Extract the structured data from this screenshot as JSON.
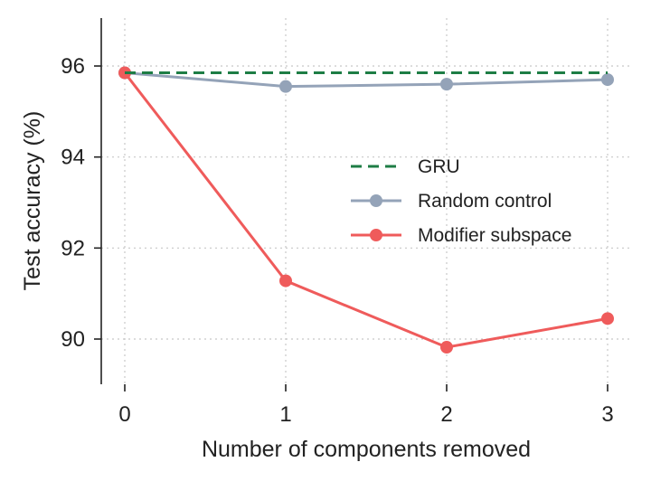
{
  "chart_data": {
    "type": "line",
    "xlabel": "Number of components removed",
    "ylabel": "Test accuracy (%)",
    "x": [
      0,
      1,
      2,
      3
    ],
    "xticks": [
      "0",
      "1",
      "2",
      "3"
    ],
    "yticks": [
      "90",
      "92",
      "94",
      "96"
    ],
    "xlim": [
      0,
      3
    ],
    "ylim": [
      88.8,
      96.9
    ],
    "grid": true,
    "legend_position": "center-right",
    "series": [
      {
        "name": "GRU",
        "style": "dashed",
        "markers": false,
        "color": "#1e7d45",
        "values": [
          95.85,
          95.85,
          95.85,
          95.85
        ]
      },
      {
        "name": "Random control",
        "style": "solid",
        "markers": true,
        "color": "#94a3b8",
        "values": [
          95.85,
          95.55,
          95.6,
          95.7
        ]
      },
      {
        "name": "Modifier subspace",
        "style": "solid",
        "markers": true,
        "color": "#ef5b5b",
        "values": [
          95.85,
          91.28,
          89.82,
          90.45
        ]
      }
    ]
  }
}
